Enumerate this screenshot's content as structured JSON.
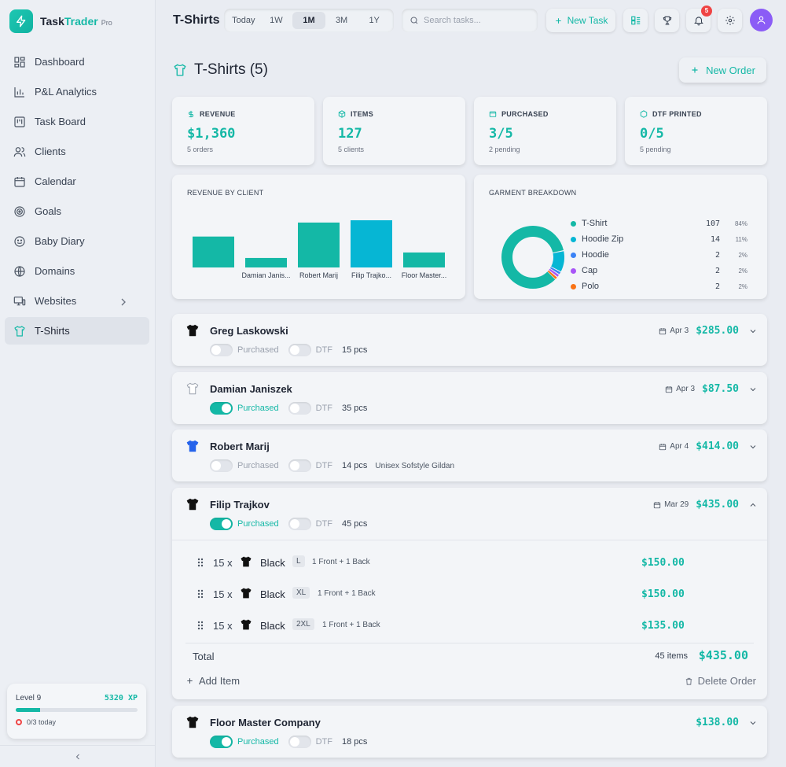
{
  "app": {
    "name_part1": "Task",
    "name_part2": "Trader",
    "edition": "Pro"
  },
  "nav": [
    {
      "label": "Dashboard",
      "icon": "dashboard-icon"
    },
    {
      "label": "P&L Analytics",
      "icon": "chart-bar-icon"
    },
    {
      "label": "Task Board",
      "icon": "kanban-icon"
    },
    {
      "label": "Clients",
      "icon": "users-icon"
    },
    {
      "label": "Calendar",
      "icon": "calendar-icon"
    },
    {
      "label": "Goals",
      "icon": "target-icon"
    },
    {
      "label": "Baby Diary",
      "icon": "smile-icon"
    },
    {
      "label": "Domains",
      "icon": "globe-icon"
    },
    {
      "label": "Websites",
      "icon": "monitor-icon"
    },
    {
      "label": "T-Shirts",
      "icon": "tshirt-icon"
    }
  ],
  "level": {
    "label": "Level 9",
    "xp": "5320 XP",
    "progress": 0.2,
    "today": "0/3 today"
  },
  "header": {
    "page": "T-Shirts",
    "ranges": [
      "Today",
      "1W",
      "1M",
      "3M",
      "1Y"
    ],
    "active_range": "1M",
    "search_placeholder": "Search tasks...",
    "new_task": "New Task",
    "notifications": "5"
  },
  "title": "T-Shirts (5)",
  "new_order": "New Order",
  "stats": [
    {
      "label": "REVENUE",
      "value": "$1,360",
      "sub": "5 orders",
      "icon": "dollar-icon"
    },
    {
      "label": "ITEMS",
      "value": "127",
      "sub": "5 clients",
      "icon": "box-icon"
    },
    {
      "label": "PURCHASED",
      "value": "3/5",
      "sub": "2 pending",
      "icon": "cart-icon"
    },
    {
      "label": "DTF PRINTED",
      "value": "0/5",
      "sub": "5 pending",
      "icon": "printer-icon"
    }
  ],
  "revenue_panel": {
    "title": "REVENUE BY CLIENT"
  },
  "garment_panel": {
    "title": "GARMENT BREAKDOWN"
  },
  "chart_data": [
    {
      "type": "bar",
      "title": "REVENUE BY CLIENT",
      "categories": [
        "Greg Laskowski",
        "Damian Janis...",
        "Robert Marij",
        "Filip Trajko...",
        "Floor Master..."
      ],
      "tick_labels": [
        "",
        "Damian Janis...",
        "Robert Marij",
        "Filip Trajko...",
        "Floor Master..."
      ],
      "values": [
        285,
        87.5,
        414,
        435,
        138
      ],
      "colors": [
        "#14b8a6",
        "#14b8a6",
        "#14b8a6",
        "#06b6d4",
        "#14b8a6"
      ]
    },
    {
      "type": "pie",
      "title": "GARMENT BREAKDOWN",
      "labels": [
        "T-Shirt",
        "Hoodie Zip",
        "Hoodie",
        "Cap",
        "Polo"
      ],
      "values": [
        107,
        14,
        2,
        2,
        2
      ],
      "percents": [
        "84%",
        "11%",
        "2%",
        "2%",
        "2%"
      ],
      "colors": [
        "#14b8a6",
        "#06b6d4",
        "#3b82f6",
        "#a855f7",
        "#f97316"
      ]
    }
  ],
  "orders": [
    {
      "name": "Greg Laskowski",
      "date": "Apr 3",
      "amount": "$285.00",
      "purchased": false,
      "dtf": false,
      "pcs": "15 pcs",
      "extra": "",
      "shirt_color": "#111111",
      "expanded": false
    },
    {
      "name": "Damian Janiszek",
      "date": "Apr 3",
      "amount": "$87.50",
      "purchased": true,
      "dtf": false,
      "pcs": "35 pcs",
      "extra": "",
      "shirt_color": "#ffffff",
      "expanded": false
    },
    {
      "name": "Robert Marij",
      "date": "Apr 4",
      "amount": "$414.00",
      "purchased": false,
      "dtf": false,
      "pcs": "14 pcs",
      "extra": "Unisex Sofstyle Gildan",
      "shirt_color": "#2563eb",
      "expanded": false
    },
    {
      "name": "Filip Trajkov",
      "date": "Mar 29",
      "amount": "$435.00",
      "purchased": true,
      "dtf": false,
      "pcs": "45 pcs",
      "extra": "",
      "shirt_color": "#111111",
      "expanded": true,
      "items": [
        {
          "qty": "15 x",
          "color": "Black",
          "size": "L",
          "print": "1 Front + 1 Back",
          "price": "$150.00"
        },
        {
          "qty": "15 x",
          "color": "Black",
          "size": "XL",
          "print": "1 Front + 1 Back",
          "price": "$150.00"
        },
        {
          "qty": "15 x",
          "color": "Black",
          "size": "2XL",
          "print": "1 Front + 1 Back",
          "price": "$135.00"
        }
      ],
      "total_label": "Total",
      "total_items": "45 items",
      "total_amount": "$435.00",
      "add_item": "Add Item",
      "delete_order": "Delete Order"
    },
    {
      "name": "Floor Master Company",
      "date": "",
      "amount": "$138.00",
      "purchased": true,
      "dtf": false,
      "pcs": "18 pcs",
      "extra": "",
      "shirt_color": "#111111",
      "expanded": false
    }
  ],
  "labels": {
    "purchased": "Purchased",
    "dtf": "DTF"
  },
  "colors": {
    "accent": "#14b8a6",
    "bg": "#e9ecf2",
    "card": "#f3f5f8"
  }
}
